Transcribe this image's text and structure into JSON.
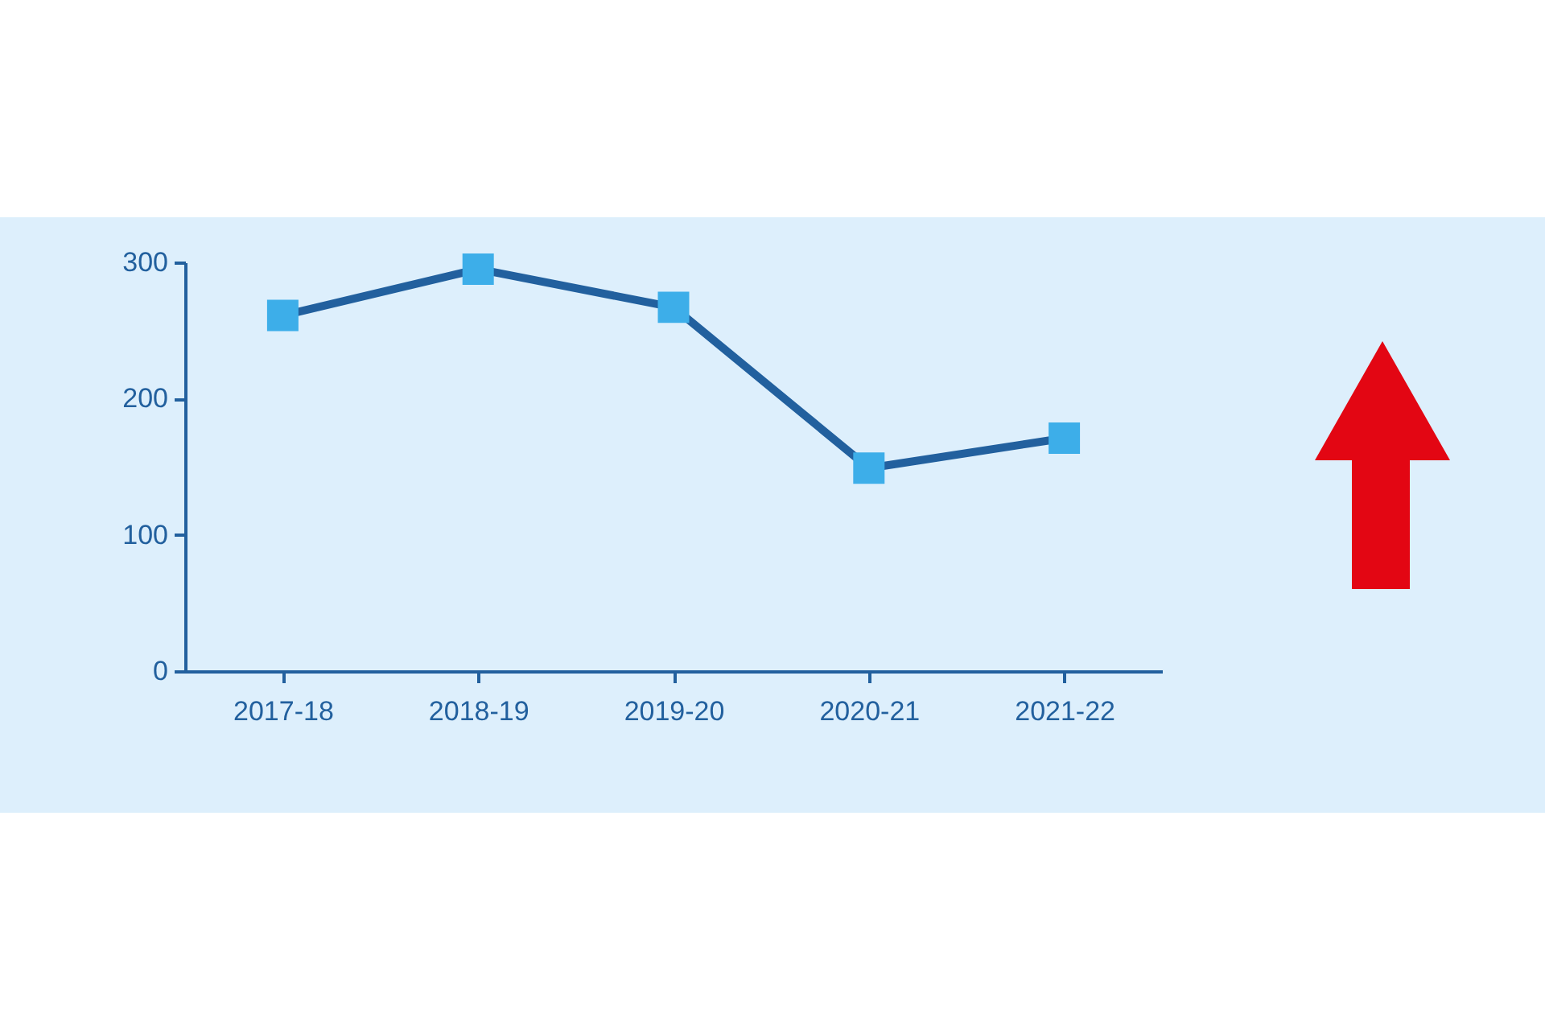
{
  "chart_data": {
    "type": "line",
    "categories": [
      "2017-18",
      "2018-19",
      "2019-20",
      "2020-21",
      "2021-22"
    ],
    "series": [
      {
        "color": "#22609e",
        "values": [
          261,
          295,
          267,
          149,
          171
        ]
      }
    ],
    "colors": [
      "#3daee9",
      "#3daee9",
      "#3daee9",
      "#3daee9",
      "#3daee9"
    ],
    "ylim": [
      0,
      300
    ],
    "yticks": [
      0,
      100,
      200,
      300
    ],
    "grid": false,
    "marker": "square",
    "line_style": "solid"
  }
}
